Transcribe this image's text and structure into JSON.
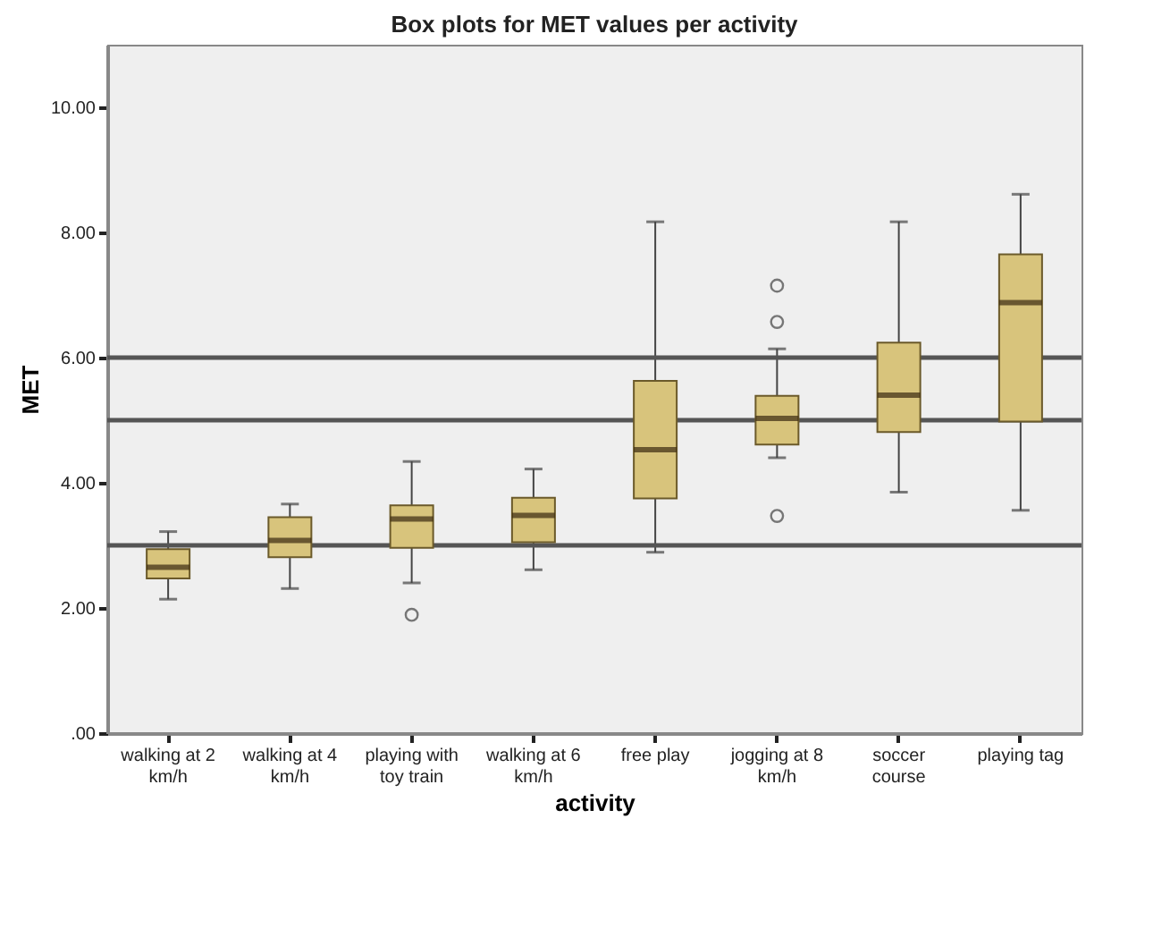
{
  "chart_data": {
    "type": "box",
    "title": "Box plots for MET values per activity",
    "xlabel": "activity",
    "ylabel": "MET",
    "categories": [
      "walking at 2 km/h",
      "walking at 4 km/h",
      "playing with toy train",
      "walking at 6 km/h",
      "free play",
      "jogging at 8 km/h",
      "soccer course",
      "playing tag"
    ],
    "color": "#d8c47c",
    "boxes": [
      {
        "low": 2.14,
        "q1": 2.47,
        "median": 2.65,
        "q3": 2.94,
        "high": 3.22
      },
      {
        "low": 2.31,
        "q1": 2.81,
        "median": 3.08,
        "q3": 3.45,
        "high": 3.66
      },
      {
        "low": 2.4,
        "q1": 2.96,
        "median": 3.42,
        "q3": 3.64,
        "high": 4.34,
        "outliers": [
          1.89
        ]
      },
      {
        "low": 2.61,
        "q1": 3.05,
        "median": 3.48,
        "q3": 3.76,
        "high": 4.22
      },
      {
        "low": 2.89,
        "q1": 3.75,
        "median": 4.53,
        "q3": 5.63,
        "high": 8.17
      },
      {
        "low": 4.4,
        "q1": 4.61,
        "median": 5.03,
        "q3": 5.39,
        "high": 6.14,
        "outliers": [
          3.47,
          6.57,
          7.15
        ]
      },
      {
        "low": 3.85,
        "q1": 4.81,
        "median": 5.4,
        "q3": 6.24,
        "high": 8.17
      },
      {
        "low": 3.56,
        "q1": 4.98,
        "median": 6.88,
        "q3": 7.65,
        "high": 8.61
      }
    ],
    "ylim": [
      0,
      11
    ],
    "yticks": [
      {
        "value": 0,
        "label": ".00"
      },
      {
        "value": 2,
        "label": "2.00"
      },
      {
        "value": 4,
        "label": "4.00"
      },
      {
        "value": 6,
        "label": "6.00"
      },
      {
        "value": 8,
        "label": "8.00"
      },
      {
        "value": 10,
        "label": "10.00"
      }
    ],
    "ref_lines": [
      {
        "axis": "y",
        "value": 3,
        "color": "#555555"
      },
      {
        "axis": "y",
        "value": 5,
        "color": "#555555"
      },
      {
        "axis": "y",
        "value": 6,
        "color": "#555555"
      }
    ],
    "grid": false
  }
}
